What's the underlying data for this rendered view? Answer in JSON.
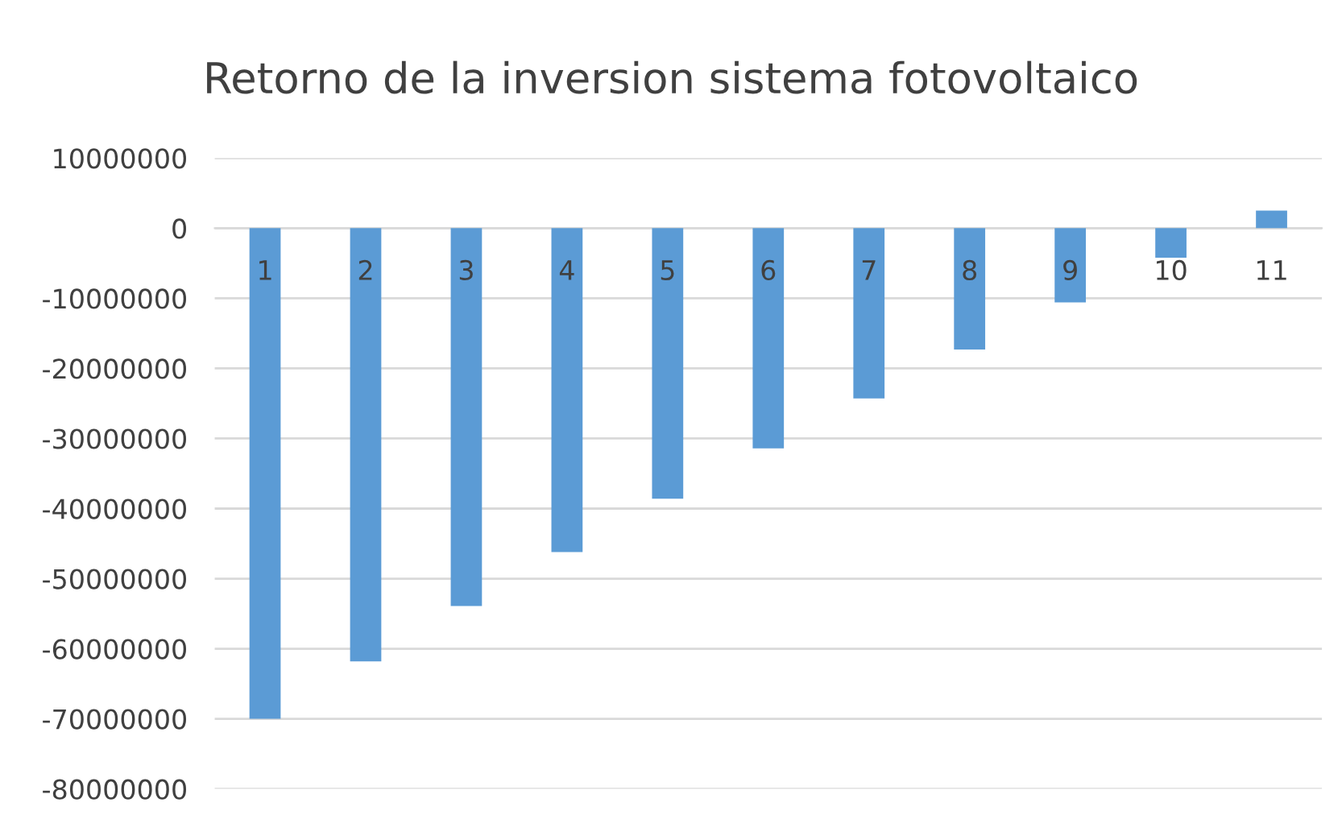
{
  "chart_data": {
    "type": "bar",
    "title": "Retorno de la inversion sistema fotovoltaico",
    "categories": [
      "1",
      "2",
      "3",
      "4",
      "5",
      "6",
      "7",
      "8",
      "9",
      "10",
      "11"
    ],
    "values": [
      -70000000,
      -61800000,
      -53900000,
      -46200000,
      -38600000,
      -31400000,
      -24300000,
      -17300000,
      -10600000,
      -4200000,
      2500000
    ],
    "color": "#5b9bd5",
    "ylim": [
      -80000000,
      10000000
    ],
    "yticks": [
      -80000000,
      -70000000,
      -60000000,
      -50000000,
      -40000000,
      -30000000,
      -20000000,
      -10000000,
      0,
      10000000
    ],
    "grid": "y"
  }
}
